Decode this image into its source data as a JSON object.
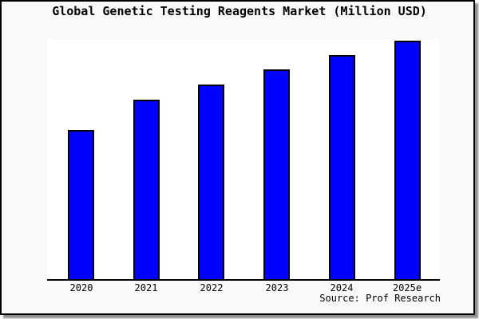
{
  "window": {
    "title": "Global Genetic Testing Reagents Market (Million USD)"
  },
  "chart_data": {
    "type": "bar",
    "title": "Global Genetic Testing Reagents Market (Million USD)",
    "categories": [
      "2020",
      "2021",
      "2022",
      "2023",
      "2024",
      "2025e"
    ],
    "values": [
      62.5,
      75.3,
      81.6,
      88.0,
      94.0,
      100.0
    ],
    "value_note": "No y-axis scale or data labels are shown in the image; values are relative bar heights normalized to 2025e = 100.",
    "xlabel": "",
    "ylabel": "",
    "ylim": [
      0,
      101
    ],
    "grid": false,
    "legend": false,
    "bar_color": "#0000ff",
    "bar_border_color": "#000000",
    "plot_background": "#ffffff",
    "frame_background": "#f9f9f9",
    "source": "Source: Prof Research"
  },
  "colors": {
    "accent_bar": "#0000ff",
    "axis": "#000000",
    "text": "#000000",
    "frame_border": "#000000",
    "frame_shadow": "#8e8e8e"
  }
}
